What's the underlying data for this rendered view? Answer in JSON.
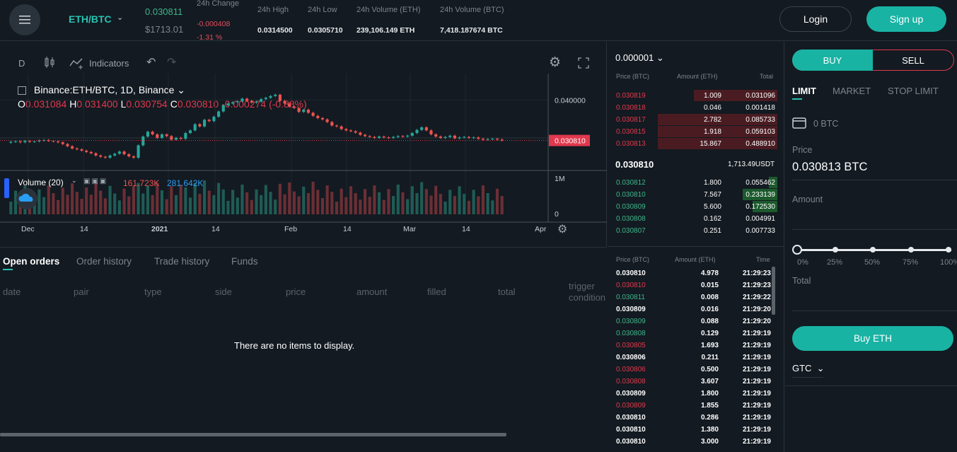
{
  "header": {
    "pair": "ETH/BTC",
    "last_price": "0.030811",
    "usd_price": "$1713.01",
    "change_label": "24h Change",
    "change_abs": "-0.000408",
    "change_pct": "-1.31 %",
    "high_label": "24h High",
    "high_value": "0.0314500",
    "low_label": "24h Low",
    "low_value": "0.0305710",
    "vol_eth_label": "24h Volume (ETH)",
    "vol_eth_value": "239,106.149 ETH",
    "vol_btc_label": "24h Volume (BTC)",
    "vol_btc_value": "7,418.187674 BTC",
    "login_label": "Login",
    "signup_label": "Sign up"
  },
  "chart": {
    "interval": "D",
    "indicators_label": "Indicators",
    "title": "Binance:ETH/BTC, 1D, Binance",
    "ohlc": {
      "o_label": "O",
      "o": "0.031084",
      "h_label": "H",
      "h": "0.031400",
      "l_label": "L",
      "l": "0.030754",
      "c_label": "C",
      "c": "0.030810",
      "change": "-0.000274 (-0.88%)"
    },
    "volume_label": "Volume (20)",
    "volume_v1": "161.723K",
    "volume_v2": "281.642K",
    "price_axis": [
      "0.040000",
      "0.030810"
    ],
    "volume_axis": [
      "1M",
      "0"
    ],
    "time_axis": [
      "Dec",
      "14",
      "2021",
      "14",
      "Feb",
      "14",
      "Mar",
      "14",
      "Apr"
    ],
    "colors": {
      "up": "#26a69a",
      "down": "#ef5350",
      "last_price_tag": "#e0394d"
    }
  },
  "chart_data": {
    "type": "candlestick",
    "symbol": "ETH/BTC",
    "ylim": [
      0.024,
      0.046
    ],
    "last_price": 0.03081,
    "closes": [
      0.0305,
      0.0306,
      0.0304,
      0.0307,
      0.0305,
      0.0306,
      0.0308,
      0.0309,
      0.0307,
      0.0306,
      0.0304,
      0.03,
      0.0295,
      0.029,
      0.0288,
      0.0285,
      0.0282,
      0.0279,
      0.0274,
      0.0271,
      0.0269,
      0.0274,
      0.0278,
      0.0283,
      0.0277,
      0.0272,
      0.0269,
      0.0297,
      0.0317,
      0.0328,
      0.0322,
      0.0314,
      0.0322,
      0.0318,
      0.031,
      0.0314,
      0.0312,
      0.0325,
      0.0331,
      0.0345,
      0.034,
      0.0355,
      0.0352,
      0.0362,
      0.0374,
      0.0388,
      0.0392,
      0.0395,
      0.0397,
      0.0403,
      0.0398,
      0.0394,
      0.0396,
      0.0402,
      0.0405,
      0.0409,
      0.0412,
      0.0398,
      0.0392,
      0.0385,
      0.0382,
      0.0373,
      0.0378,
      0.0371,
      0.0364,
      0.0359,
      0.0356,
      0.035,
      0.0342,
      0.034,
      0.0334,
      0.0331,
      0.0329,
      0.0326,
      0.0321,
      0.0318,
      0.0316,
      0.0314,
      0.0317,
      0.0315,
      0.0314,
      0.0316,
      0.0318,
      0.0317,
      0.0319,
      0.0325,
      0.0332,
      0.0338,
      0.0331,
      0.0322,
      0.0317,
      0.0314,
      0.0316,
      0.0319,
      0.0313,
      0.0315,
      0.0316,
      0.0314,
      0.0315,
      0.0312,
      0.031,
      0.0311,
      0.0312,
      0.031,
      0.0308
    ]
  },
  "orderbook": {
    "tick_size": "0.000001",
    "col_price": "Price (BTC)",
    "col_amount": "Amount (ETH)",
    "col_total": "Total",
    "asks": [
      {
        "price": "0.030819",
        "amount": "1.009",
        "total": "0.031096",
        "depth": 0.7
      },
      {
        "price": "0.030818",
        "amount": "0.046",
        "total": "0.001418",
        "depth": 0.0
      },
      {
        "price": "0.030817",
        "amount": "2.782",
        "total": "0.085733",
        "depth": 1.0
      },
      {
        "price": "0.030815",
        "amount": "1.918",
        "total": "0.059103",
        "depth": 1.0
      },
      {
        "price": "0.030813",
        "amount": "15.867",
        "total": "0.488910",
        "depth": 1.0
      }
    ],
    "mid_price": "0.030810",
    "mid_usd": "1,713.49USDT",
    "bids": [
      {
        "price": "0.030812",
        "amount": "1.800",
        "total": "0.055462",
        "depth": 0.07
      },
      {
        "price": "0.030810",
        "amount": "7.567",
        "total": "0.233139",
        "depth": 0.29
      },
      {
        "price": "0.030809",
        "amount": "5.600",
        "total": "0.172530",
        "depth": 0.21
      },
      {
        "price": "0.030808",
        "amount": "0.162",
        "total": "0.004991",
        "depth": 0.0
      },
      {
        "price": "0.030807",
        "amount": "0.251",
        "total": "0.007733",
        "depth": 0.0
      }
    ]
  },
  "trades": {
    "col_price": "Price (BTC)",
    "col_amount": "Amount (ETH)",
    "col_time": "Time",
    "rows": [
      {
        "price": "0.030810",
        "amount": "4.978",
        "time": "21:29:23",
        "side": "neutral"
      },
      {
        "price": "0.030810",
        "amount": "0.015",
        "time": "21:29:23",
        "side": "sell"
      },
      {
        "price": "0.030811",
        "amount": "0.008",
        "time": "21:29:22",
        "side": "buy"
      },
      {
        "price": "0.030809",
        "amount": "0.016",
        "time": "21:29:20",
        "side": "neutral"
      },
      {
        "price": "0.030809",
        "amount": "0.088",
        "time": "21:29:20",
        "side": "buy"
      },
      {
        "price": "0.030808",
        "amount": "0.129",
        "time": "21:29:19",
        "side": "buy"
      },
      {
        "price": "0.030805",
        "amount": "1.693",
        "time": "21:29:19",
        "side": "sell"
      },
      {
        "price": "0.030806",
        "amount": "0.211",
        "time": "21:29:19",
        "side": "neutral"
      },
      {
        "price": "0.030806",
        "amount": "0.500",
        "time": "21:29:19",
        "side": "sell"
      },
      {
        "price": "0.030808",
        "amount": "3.607",
        "time": "21:29:19",
        "side": "sell"
      },
      {
        "price": "0.030809",
        "amount": "1.800",
        "time": "21:29:19",
        "side": "neutral"
      },
      {
        "price": "0.030809",
        "amount": "1.855",
        "time": "21:29:19",
        "side": "sell"
      },
      {
        "price": "0.030810",
        "amount": "0.286",
        "time": "21:29:19",
        "side": "neutral"
      },
      {
        "price": "0.030810",
        "amount": "1.380",
        "time": "21:29:19",
        "side": "neutral"
      },
      {
        "price": "0.030810",
        "amount": "3.000",
        "time": "21:29:19",
        "side": "neutral"
      }
    ]
  },
  "orders": {
    "tabs": [
      "Open orders",
      "Order history",
      "Trade history",
      "Funds"
    ],
    "columns": [
      "date",
      "pair",
      "type",
      "side",
      "price",
      "amount",
      "filled",
      "total",
      "trigger condition"
    ],
    "empty_message": "There are no items to display."
  },
  "trade_panel": {
    "buy_label": "BUY",
    "sell_label": "SELL",
    "order_types": [
      "LIMIT",
      "MARKET",
      "STOP LIMIT"
    ],
    "balance": "0 BTC",
    "price_label": "Price",
    "price_value": "0.030813 BTC",
    "amount_label": "Amount",
    "slider_marks": [
      "0%",
      "25%",
      "50%",
      "75%",
      "100%"
    ],
    "slider_value": 0,
    "total_label": "Total",
    "submit_label": "Buy ETH",
    "tif": "GTC"
  }
}
